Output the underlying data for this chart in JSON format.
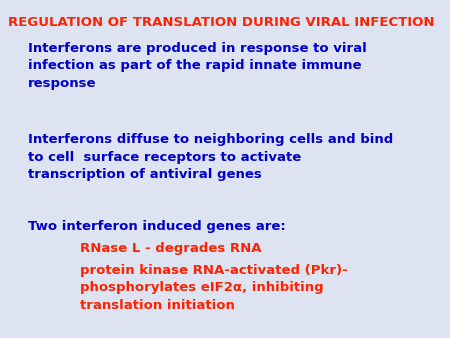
{
  "background_color": "#dde3f0",
  "title": "REGULATION OF TRANSLATION DURING VIRAL INFECTION",
  "title_color": "#ff2200",
  "title_fontsize": 9.5,
  "body_color": "#0000cc",
  "red_color": "#ff2200",
  "body_fontsize": 9.5,
  "paragraph1": "Interferons are produced in response to viral\ninfection as part of the rapid innate immune\nresponse",
  "paragraph2": "Interferons diffuse to neighboring cells and bind\nto cell  surface receptors to activate\ntranscription of antiviral genes",
  "paragraph3_intro": "Two interferon induced genes are:",
  "bullet1": "RNase L - degrades RNA",
  "bullet2": "protein kinase RNA-activated (Pkr)-\nphosphorylates eIF2α, inhibiting\ntranslation initiation"
}
